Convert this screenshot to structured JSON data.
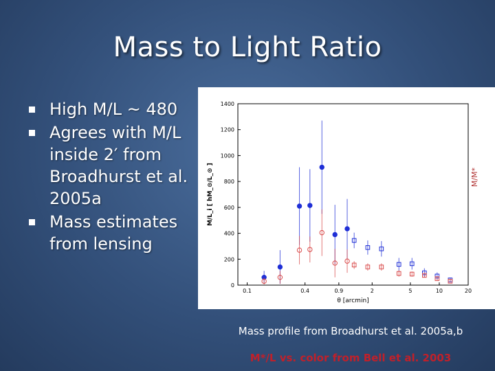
{
  "slide": {
    "title": "Mass to Light Ratio",
    "bullets": [
      "High M/L ~ 480",
      "Agrees with M/L inside 2′ from Broadhurst et al. 2005a",
      "Mass estimates from lensing"
    ],
    "caption": "Mass profile from Broadhurst et al. 2005a,b",
    "caption2": "M*/L vs. color from Bell et al. 2003"
  },
  "colors": {
    "blue": "#1f2fd6",
    "red": "#d94a4a",
    "caption2": "#c0202a"
  },
  "chart_data": {
    "type": "scatter",
    "xlabel": "θ [arcmin]",
    "ylabel": "M/L_i [ hM_⊙/L_⊙ ]",
    "ylabel_right": "M/M*",
    "x_scale": "log",
    "xlim": [
      0.08,
      20
    ],
    "ylim": [
      0,
      1400
    ],
    "x_ticks": [
      0.1,
      0.4,
      0.9,
      2,
      5,
      10,
      20
    ],
    "x_tick_labels": [
      "0.1",
      "0.4",
      "0.9",
      "2",
      "5",
      "10",
      "20"
    ],
    "y_ticks": [
      0,
      200,
      400,
      600,
      800,
      1000,
      1200,
      1400
    ],
    "y_tick_labels": [
      "0",
      "200",
      "400",
      "600",
      "800",
      "1000",
      "1200",
      "1400"
    ],
    "series": [
      {
        "marker": "filled-circle",
        "color": "#1f2fd6",
        "x": [
          0.15,
          0.22,
          0.35,
          0.45,
          0.6,
          0.82,
          1.1
        ],
        "y": [
          60,
          140,
          610,
          615,
          910,
          390,
          435
        ],
        "y_err": [
          50,
          130,
          300,
          280,
          360,
          230,
          230
        ]
      },
      {
        "marker": "open-circle",
        "color": "#d94a4a",
        "x": [
          0.15,
          0.22,
          0.35,
          0.45,
          0.6,
          0.82,
          1.1
        ],
        "y": [
          30,
          60,
          270,
          275,
          405,
          170,
          185
        ],
        "y_err": [
          25,
          50,
          110,
          100,
          180,
          110,
          90
        ]
      },
      {
        "marker": "open-square",
        "color": "#1f2fd6",
        "x": [
          1.3,
          1.8,
          2.5,
          3.8,
          5.2,
          7.0,
          9.5,
          13.0
        ],
        "y": [
          345,
          290,
          280,
          160,
          165,
          95,
          70,
          40
        ],
        "y_err": [
          60,
          55,
          60,
          50,
          45,
          35,
          28,
          18
        ]
      },
      {
        "marker": "open-square",
        "color": "#d94a4a",
        "x": [
          1.3,
          1.8,
          2.5,
          3.8,
          5.2,
          7.0,
          9.5,
          13.0
        ],
        "y": [
          155,
          140,
          140,
          90,
          85,
          75,
          50,
          30
        ],
        "y_err": [
          30,
          28,
          28,
          25,
          20,
          16,
          14,
          10
        ]
      }
    ]
  }
}
